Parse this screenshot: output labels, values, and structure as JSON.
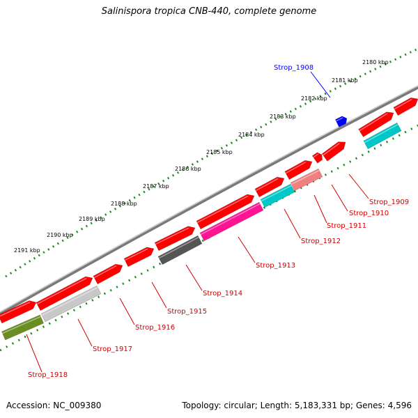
{
  "title": "Salinispora tropica CNB-440, complete genome",
  "footer": {
    "accession": "Accession: NC_009380",
    "summary": "Topology: circular; Length: 5,183,331 bp; Genes: 4,596"
  },
  "ticks": [
    "2180 kbp",
    "2181 kbp",
    "2182 kbp",
    "2183 kbp",
    "2184 kbp",
    "2185 kbp",
    "2186 kbp",
    "2187 kbp",
    "2188 kbp",
    "2189 kbp",
    "2190 kbp",
    "2191 kbp"
  ],
  "genes": [
    {
      "label": "Strop_1908",
      "color": "#0000ff"
    },
    {
      "label": "Strop_1909",
      "color": "#d00000"
    },
    {
      "label": "Strop_1910",
      "color": "#d00000"
    },
    {
      "label": "Strop_1911",
      "color": "#d00000"
    },
    {
      "label": "Strop_1912",
      "color": "#d00000"
    },
    {
      "label": "Strop_1913",
      "color": "#d00000"
    },
    {
      "label": "Strop_1914",
      "color": "#d00000"
    },
    {
      "label": "Strop_1915",
      "color": "#d00000"
    },
    {
      "label": "Strop_1916",
      "color": "#d00000"
    },
    {
      "label": "Strop_1917",
      "color": "#d00000"
    },
    {
      "label": "Strop_1918",
      "color": "#d00000"
    }
  ],
  "colors": {
    "backbone": "#808080",
    "tick_ring": "#1a8a1a",
    "forward_gene": "#ff0000",
    "cyan_gene": "#00c8c8",
    "pink_gene": "#ff1493",
    "salmon_gene": "#f08080",
    "dark_gray_gene": "#555555",
    "light_gray_gene": "#c8c8c8",
    "olive_gene": "#6b8e23",
    "blue_gene": "#0000ff"
  }
}
